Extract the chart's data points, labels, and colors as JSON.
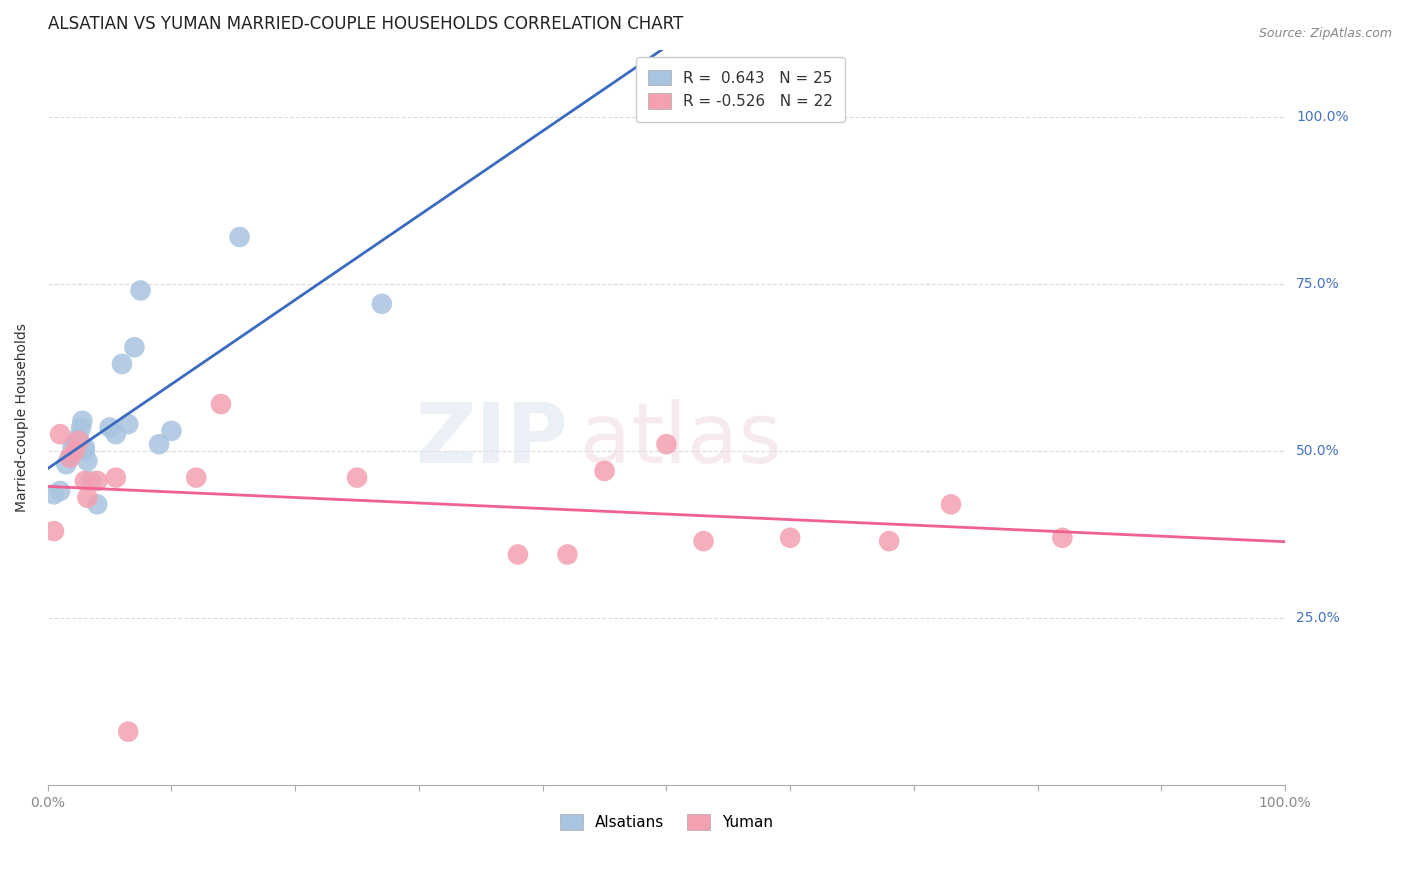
{
  "title": "ALSATIAN VS YUMAN MARRIED-COUPLE HOUSEHOLDS CORRELATION CHART",
  "source": "Source: ZipAtlas.com",
  "ylabel": "Married-couple Households",
  "xlim": [
    0.0,
    1.0
  ],
  "ylim": [
    0.0,
    1.1
  ],
  "yticks": [
    0.25,
    0.5,
    0.75,
    1.0
  ],
  "ytick_labels": [
    "25.0%",
    "50.0%",
    "75.0%",
    "100.0%"
  ],
  "xticks": [
    0.0,
    0.1,
    0.2,
    0.3,
    0.4,
    0.5,
    0.6,
    0.7,
    0.8,
    0.9,
    1.0
  ],
  "alsatian_color": "#a8c4e0",
  "yuman_color": "#f4a0b0",
  "alsatian_line_color": "#3a6bbf",
  "yuman_line_color": "#f06090",
  "alsatian_x": [
    0.005,
    0.01,
    0.015,
    0.018,
    0.02,
    0.022,
    0.025,
    0.025,
    0.027,
    0.028,
    0.03,
    0.03,
    0.032,
    0.035,
    0.04,
    0.05,
    0.055,
    0.06,
    0.065,
    0.07,
    0.075,
    0.09,
    0.1,
    0.155,
    0.27
  ],
  "alsatian_y": [
    0.435,
    0.44,
    0.48,
    0.49,
    0.505,
    0.51,
    0.515,
    0.52,
    0.535,
    0.545,
    0.5,
    0.505,
    0.485,
    0.455,
    0.42,
    0.535,
    0.525,
    0.63,
    0.54,
    0.655,
    0.74,
    0.51,
    0.53,
    0.82,
    0.72
  ],
  "yuman_x": [
    0.005,
    0.01,
    0.018,
    0.022,
    0.025,
    0.03,
    0.032,
    0.04,
    0.055,
    0.065,
    0.12,
    0.14,
    0.25,
    0.38,
    0.42,
    0.45,
    0.5,
    0.53,
    0.6,
    0.68,
    0.73,
    0.82
  ],
  "yuman_y": [
    0.38,
    0.525,
    0.49,
    0.5,
    0.515,
    0.455,
    0.43,
    0.455,
    0.46,
    0.08,
    0.46,
    0.57,
    0.46,
    0.345,
    0.345,
    0.47,
    0.51,
    0.365,
    0.37,
    0.365,
    0.42,
    0.37
  ],
  "legend_alsatian": "R =  0.643   N = 25",
  "legend_yuman": "R = -0.526   N = 22",
  "legend_alsatians_label": "Alsatians",
  "legend_yuman_label": "Yuman",
  "background_color": "#ffffff",
  "grid_color": "#cccccc",
  "title_fontsize": 12,
  "axis_label_fontsize": 10,
  "tick_fontsize": 10,
  "legend_fontsize": 11,
  "source_fontsize": 9
}
